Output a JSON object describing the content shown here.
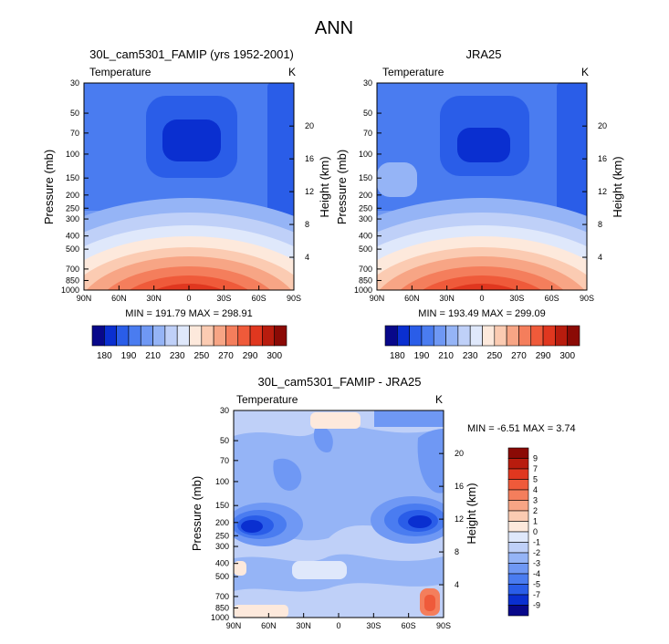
{
  "page_title": "ANN",
  "palette": [
    "#08088a",
    "#0a2fd0",
    "#2a5de8",
    "#4a7cf0",
    "#6f98f4",
    "#95b4f6",
    "#bfd0f8",
    "#dfe8fb",
    "#fde9dc",
    "#fbcbb2",
    "#f7a585",
    "#f47e5c",
    "#ef5a3a",
    "#e0371f",
    "#b81c0e",
    "#8b0a05"
  ],
  "chart_data": [
    {
      "type": "heatmap",
      "id": "p1",
      "title": "30L_cam5301_FAMIP (yrs 1952-2001)",
      "left_label": "Temperature",
      "right_label": "K",
      "ylabel": "Pressure (mb)",
      "y2label": "Height (km)",
      "x_ticks": [
        "90N",
        "60N",
        "30N",
        "0",
        "30S",
        "60S",
        "90S"
      ],
      "x_values": [
        90,
        60,
        30,
        0,
        -30,
        -60,
        -90
      ],
      "p_ticks": [
        "30",
        "50",
        "70",
        "100",
        "150",
        "200",
        "250",
        "300",
        "400",
        "500",
        "700",
        "850",
        "1000"
      ],
      "p_values": [
        30,
        50,
        70,
        100,
        150,
        200,
        250,
        300,
        400,
        500,
        700,
        850,
        1000
      ],
      "h_ticks": [
        "20",
        "16",
        "12",
        "8",
        "4"
      ],
      "h_values": [
        20,
        16,
        12,
        8,
        4
      ],
      "stats": "MIN = 191.79  MAX = 298.91",
      "colorbar_labels": [
        "180",
        "190",
        "210",
        "230",
        "250",
        "270",
        "290",
        "300"
      ]
    },
    {
      "type": "heatmap",
      "id": "p2",
      "title": "JRA25",
      "left_label": "Temperature",
      "right_label": "K",
      "ylabel": "Pressure (mb)",
      "y2label": "Height (km)",
      "x_ticks": [
        "90N",
        "60N",
        "30N",
        "0",
        "30S",
        "60S",
        "90S"
      ],
      "x_values": [
        90,
        60,
        30,
        0,
        -30,
        -60,
        -90
      ],
      "p_ticks": [
        "30",
        "50",
        "70",
        "100",
        "150",
        "200",
        "250",
        "300",
        "400",
        "500",
        "700",
        "850",
        "1000"
      ],
      "p_values": [
        30,
        50,
        70,
        100,
        150,
        200,
        250,
        300,
        400,
        500,
        700,
        850,
        1000
      ],
      "h_ticks": [
        "20",
        "16",
        "12",
        "8",
        "4"
      ],
      "h_values": [
        20,
        16,
        12,
        8,
        4
      ],
      "stats": "MIN = 193.49  MAX = 299.09",
      "colorbar_labels": [
        "180",
        "190",
        "210",
        "230",
        "250",
        "270",
        "290",
        "300"
      ]
    },
    {
      "type": "heatmap",
      "id": "p3",
      "title": "30L_cam5301_FAMIP - JRA25",
      "left_label": "Temperature",
      "right_label": "K",
      "ylabel": "Pressure (mb)",
      "y2label": "Height (km)",
      "x_ticks": [
        "90N",
        "60N",
        "30N",
        "0",
        "30S",
        "60S",
        "90S"
      ],
      "x_values": [
        90,
        60,
        30,
        0,
        -30,
        -60,
        -90
      ],
      "p_ticks": [
        "30",
        "50",
        "70",
        "100",
        "150",
        "200",
        "250",
        "300",
        "400",
        "500",
        "700",
        "850",
        "1000"
      ],
      "p_values": [
        30,
        50,
        70,
        100,
        150,
        200,
        250,
        300,
        400,
        500,
        700,
        850,
        1000
      ],
      "h_ticks": [
        "20",
        "16",
        "12",
        "8",
        "4"
      ],
      "h_values": [
        20,
        16,
        12,
        8,
        4
      ],
      "stats": "MIN = -6.51  MAX =  3.74",
      "colorbar_labels": [
        "9",
        "7",
        "5",
        "4",
        "3",
        "2",
        "1",
        "0",
        "-1",
        "-2",
        "-3",
        "-4",
        "-5",
        "-7",
        "-9"
      ]
    }
  ]
}
